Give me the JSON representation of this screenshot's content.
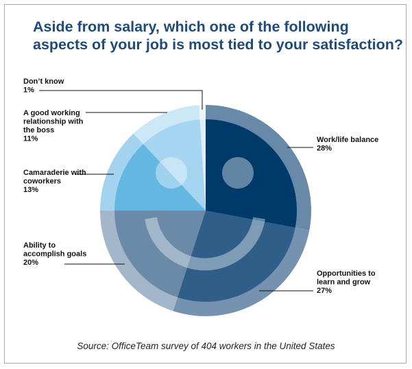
{
  "title_lines": [
    "Aside from salary, which one of the following",
    "aspects of your job is most tied to your satisfaction?"
  ],
  "source": "Source: OfficeTeam survey of 404 workers in the United States",
  "chart_data": {
    "type": "pie",
    "title": "Aside from salary, which one of the following aspects of your job is most tied to your satisfaction?",
    "slices": [
      {
        "label": [
          "Work/life balance"
        ],
        "value": 28,
        "value_label": "28%",
        "color": "#003a6a",
        "ring_color": "#6889a8"
      },
      {
        "label": [
          "Opportunities to",
          "learn and grow"
        ],
        "value": 27,
        "value_label": "27%",
        "color": "#2f5f89",
        "ring_color": "#7593b0"
      },
      {
        "label": [
          "Ability to",
          "accomplish goals"
        ],
        "value": 20,
        "value_label": "20%",
        "color": "#6a8aa8",
        "ring_color": "#a3b6ca"
      },
      {
        "label": [
          "Camaraderie with",
          "coworkers"
        ],
        "value": 13,
        "value_label": "13%",
        "color": "#64b7e1",
        "ring_color": "#a3d3ef"
      },
      {
        "label": [
          "A good working",
          "relationship with",
          "the boss"
        ],
        "value": 11,
        "value_label": "11%",
        "color": "#a5d5f0",
        "ring_color": "#cce7f6"
      },
      {
        "label": [
          "Don’t know"
        ],
        "value": 1,
        "value_label": "1%",
        "color": "#e2eef6",
        "ring_color": "#eff6fa"
      }
    ],
    "legend": "none",
    "decoration": "smiley-face"
  }
}
